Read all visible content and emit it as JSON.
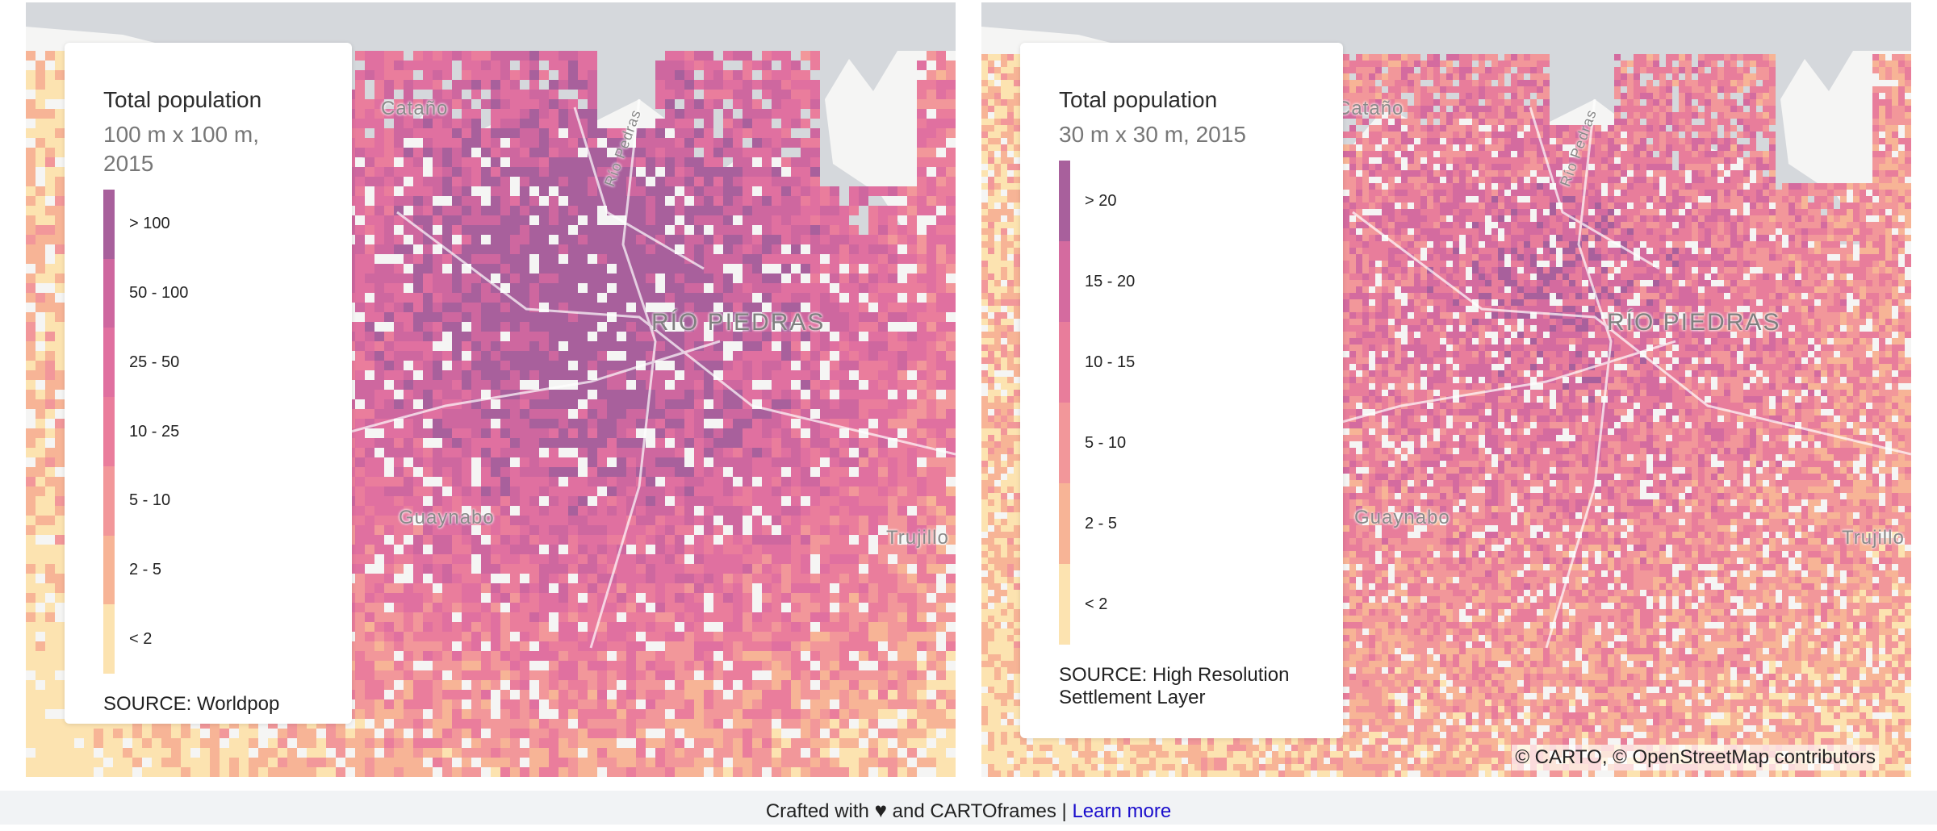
{
  "maps": [
    {
      "legend": {
        "title": "Total population",
        "subtitle": "100 m x 100 m, 2015",
        "labels": [
          "> 100",
          "50 - 100",
          "25 - 50",
          "10 - 25",
          "5 - 10",
          "2 - 5",
          "< 2"
        ],
        "colors": [
          "#a8609c",
          "#ce679f",
          "#e070a0",
          "#ea7d9c",
          "#f2979a",
          "#f7b496",
          "#fce3b0"
        ],
        "source": "SOURCE: Worldpop"
      },
      "places": [
        "Cataño",
        "Río Pedras",
        "RÍO PIEDRAS",
        "Guaynabo",
        "Trujillo"
      ]
    },
    {
      "legend": {
        "title": "Total population",
        "subtitle": "30 m x 30 m, 2015",
        "labels": [
          "> 20",
          "15 - 20",
          "10 - 15",
          "5 - 10",
          "2 - 5",
          "< 2"
        ],
        "colors": [
          "#a8609c",
          "#d46b9f",
          "#e87d9b",
          "#f2979a",
          "#f7b496",
          "#fce3b0"
        ],
        "source": "SOURCE: High Resolution Settlement Layer"
      },
      "places": [
        "Cataño",
        "Río Pedras",
        "RÍO PIEDRAS",
        "Guaynabo",
        "Trujillo"
      ],
      "attribution": "© CARTO, © OpenStreetMap contributors"
    }
  ],
  "footer": {
    "text_before": "Crafted with",
    "heart_icon": "heart-icon",
    "text_after": "and CARTOframes |",
    "link_label": "Learn more"
  }
}
